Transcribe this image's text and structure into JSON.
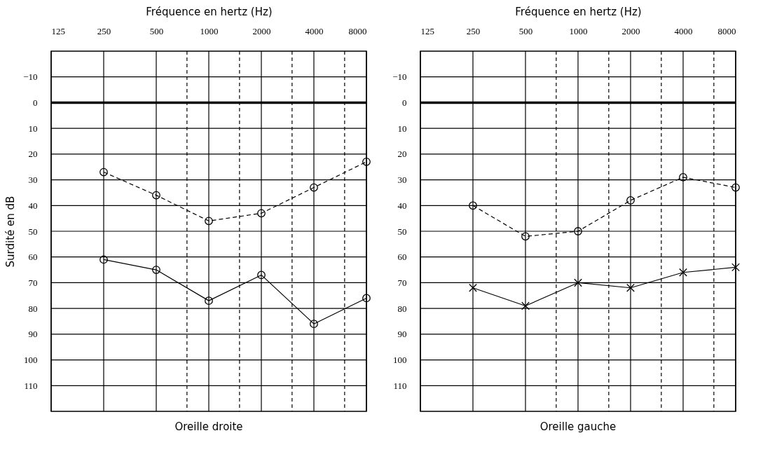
{
  "chart_data": [
    {
      "type": "line",
      "title": "Oreille droite",
      "xlabel": "Fréquence en hertz (Hz)",
      "ylabel": "Surdité en dB",
      "x": [
        250,
        500,
        1000,
        2000,
        4000,
        8000
      ],
      "xlim": [
        125,
        8000
      ],
      "xticks": [
        125,
        250,
        500,
        {
          "value": 750,
          "label": null
        },
        1000,
        {
          "value": 1500,
          "label": null
        },
        2000,
        {
          "value": 3000,
          "label": null
        },
        4000,
        {
          "value": 6000,
          "label": null
        },
        8000
      ],
      "ylim": [
        120,
        -20
      ],
      "yticks": [
        -10,
        0,
        10,
        20,
        30,
        40,
        50,
        60,
        70,
        80,
        90,
        100,
        110
      ],
      "log": "x",
      "grid": true,
      "ref_lines": [
        {
          "axis": "y",
          "value": 0
        }
      ],
      "series": [
        {
          "color": "#000000",
          "values": [
            27,
            36,
            46,
            43,
            33,
            23
          ],
          "line_style": "dashed",
          "marker": "circle"
        },
        {
          "color": "#000000",
          "values": [
            61,
            65,
            77,
            67,
            86,
            76
          ],
          "line_style": "solid",
          "marker": "circle"
        }
      ]
    },
    {
      "type": "line",
      "title": "Oreille gauche",
      "xlabel": "Fréquence en hertz (Hz)",
      "x": [
        250,
        500,
        1000,
        2000,
        4000,
        8000
      ],
      "xlim": [
        125,
        8000
      ],
      "xticks": [
        125,
        250,
        500,
        {
          "value": 750,
          "label": null
        },
        1000,
        {
          "value": 1500,
          "label": null
        },
        2000,
        {
          "value": 3000,
          "label": null
        },
        4000,
        {
          "value": 6000,
          "label": null
        },
        8000
      ],
      "ylim": [
        120,
        -20
      ],
      "yticks": [
        -10,
        0,
        10,
        20,
        30,
        40,
        50,
        60,
        70,
        80,
        90,
        100,
        110
      ],
      "log": "x",
      "grid": true,
      "ref_lines": [
        {
          "axis": "y",
          "value": 0
        }
      ],
      "series": [
        {
          "color": "#000000",
          "values": [
            40,
            52,
            50,
            38,
            29,
            33
          ],
          "line_style": "dashed",
          "marker": "circle"
        },
        {
          "color": "#000000",
          "values": [
            72,
            79,
            70,
            72,
            66,
            64
          ],
          "line_style": "solid",
          "marker": "cross"
        }
      ]
    }
  ]
}
